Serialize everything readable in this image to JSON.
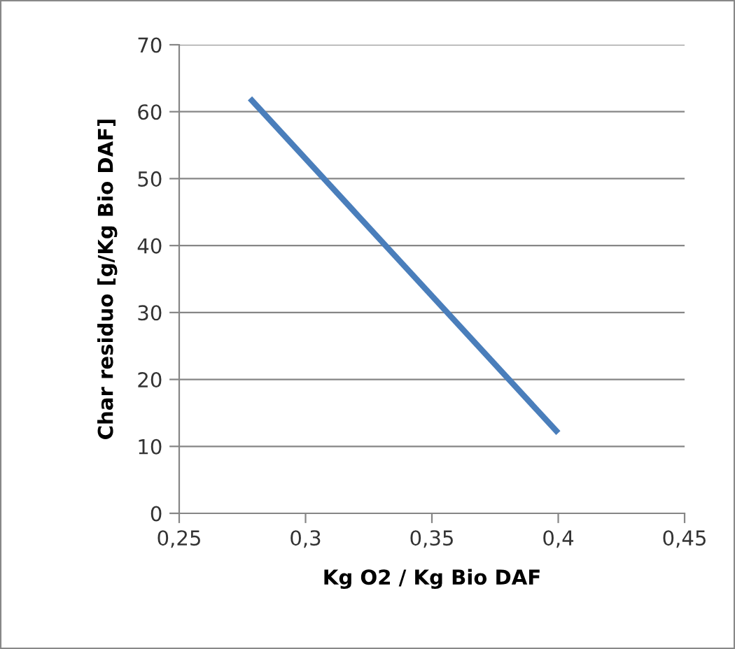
{
  "chart_data": {
    "type": "line",
    "xlabel": "Kg O2 / Kg Bio DAF",
    "ylabel": "Char residuo [g/Kg Bio DAF]",
    "x": [
      0.278,
      0.4
    ],
    "series": [
      {
        "color": "#4a7ebb",
        "values": [
          62,
          12
        ]
      }
    ],
    "xlim": [
      0.25,
      0.45
    ],
    "ylim": [
      0,
      70
    ],
    "xticks": [
      {
        "value": 0.25,
        "label": "0,25"
      },
      {
        "value": 0.3,
        "label": "0,3"
      },
      {
        "value": 0.35,
        "label": "0,35"
      },
      {
        "value": 0.4,
        "label": "0,4"
      },
      {
        "value": 0.45,
        "label": "0,45"
      }
    ],
    "yticks": [
      0,
      10,
      20,
      30,
      40,
      50,
      60,
      70
    ],
    "grid": "y",
    "legend": false,
    "marker": "none",
    "line_style": "solid"
  }
}
